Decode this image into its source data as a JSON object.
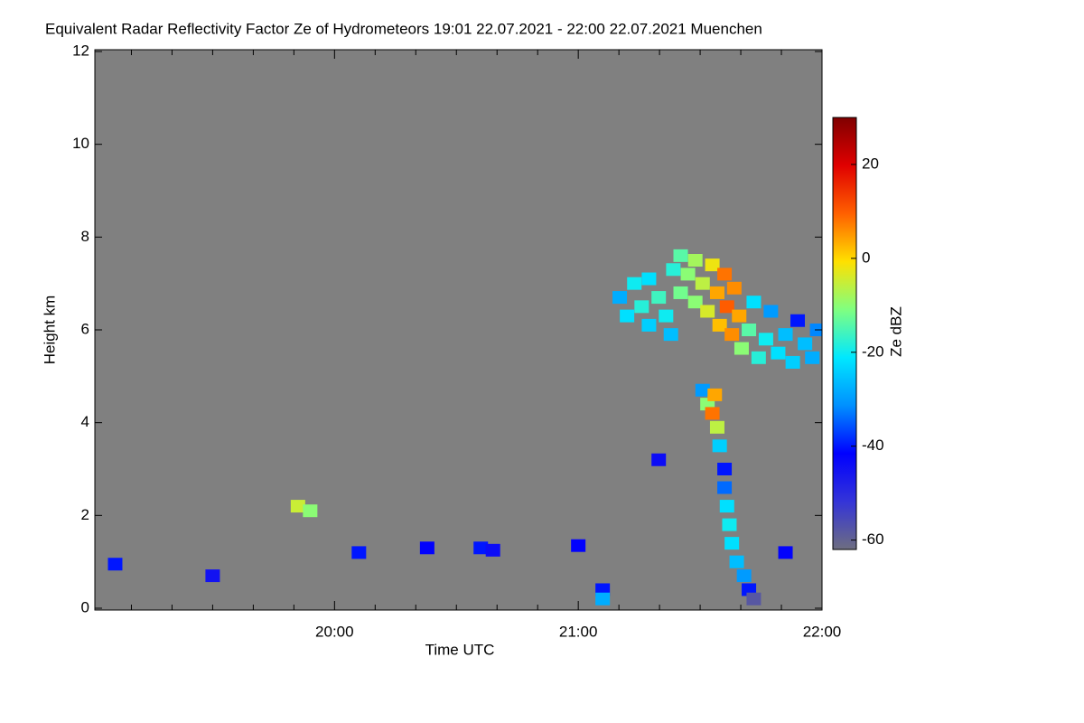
{
  "chart_data": {
    "type": "heatmap",
    "title": "Equivalent Radar Reflectivity Factor Ze of Hydrometeors   19:01 22.07.2021 - 22:00 22.07.2021 Muenchen",
    "x_label": "Time UTC",
    "y_label": "Height km",
    "xlim": [
      19.0167,
      22
    ],
    "ylim": [
      0,
      12
    ],
    "xticks": [
      {
        "value": 20,
        "label": "20:00"
      },
      {
        "value": 21,
        "label": "21:00"
      },
      {
        "value": 22,
        "label": "22:00"
      }
    ],
    "xminorticks": [
      19.1667,
      19.3333,
      19.5,
      19.6667,
      19.8333,
      20.1667,
      20.3333,
      20.5,
      20.6667,
      20.8333,
      21.1667,
      21.3333,
      21.5,
      21.6667,
      21.8333
    ],
    "yticks": [
      0,
      2,
      4,
      6,
      8,
      10,
      12
    ],
    "background": "#808080",
    "x": [
      21.17,
      21.2,
      21.23,
      21.26,
      21.29,
      21.29,
      21.33,
      21.36,
      21.38,
      21.39,
      21.42,
      21.42,
      21.45,
      21.48,
      21.48,
      21.51,
      21.53,
      21.55,
      21.57,
      21.58,
      21.6,
      21.61,
      21.63,
      21.64,
      21.66,
      21.67,
      21.7,
      21.72,
      21.74,
      21.77,
      21.79,
      21.82,
      21.85,
      21.88,
      21.9,
      21.93,
      21.96,
      21.98,
      21.51,
      21.53,
      21.55,
      21.56,
      21.57,
      21.58,
      21.6,
      21.6,
      21.61,
      21.62,
      21.63,
      21.65,
      21.68,
      21.7,
      21.72,
      19.1,
      19.5,
      19.85,
      19.9,
      20.1,
      20.38,
      20.6,
      20.65,
      21.0,
      21.1,
      21.1,
      21.33,
      21.85
    ],
    "heights": [
      6.7,
      6.3,
      7.0,
      6.5,
      6.1,
      7.1,
      6.7,
      6.3,
      5.9,
      7.3,
      7.6,
      6.8,
      7.2,
      7.5,
      6.6,
      7.0,
      6.4,
      7.4,
      6.8,
      6.1,
      7.2,
      6.5,
      5.9,
      6.9,
      6.3,
      5.6,
      6.0,
      6.6,
      5.4,
      5.8,
      6.4,
      5.5,
      5.9,
      5.3,
      6.2,
      5.7,
      5.4,
      6.0,
      4.7,
      4.4,
      4.2,
      4.6,
      3.9,
      3.5,
      3.0,
      2.6,
      2.2,
      1.8,
      1.4,
      1.0,
      0.7,
      0.4,
      0.2,
      0.95,
      0.7,
      2.2,
      2.1,
      1.2,
      1.3,
      1.3,
      1.25,
      1.35,
      0.4,
      0.2,
      3.2,
      1.2
    ],
    "values": [
      -28,
      -22,
      -20,
      -18,
      -24,
      -22,
      -16,
      -20,
      -26,
      -18,
      -14,
      -12,
      -10,
      -8,
      -10,
      -6,
      -4,
      -2,
      4,
      2,
      8,
      10,
      6,
      6,
      4,
      -10,
      -14,
      -22,
      -18,
      -20,
      -30,
      -22,
      -26,
      -24,
      -40,
      -26,
      -28,
      -32,
      -30,
      -10,
      8,
      4,
      -6,
      -24,
      -40,
      -34,
      -22,
      -20,
      -22,
      -26,
      -30,
      -40,
      -58,
      -40,
      -45,
      -5,
      -10,
      -40,
      -42,
      -40,
      -44,
      -42,
      -40,
      -28,
      -44,
      -42
    ],
    "colorbar": {
      "label": "Ze dBZ",
      "lim": [
        -62,
        30
      ],
      "ticks": [
        -60,
        -40,
        -20,
        0,
        20
      ],
      "colors": [
        "#6e6e80",
        "#3434d8",
        "#0000ff",
        "#0090ff",
        "#00e8ff",
        "#80ff80",
        "#ffe000",
        "#ff6000",
        "#e00000",
        "#800000"
      ]
    }
  }
}
